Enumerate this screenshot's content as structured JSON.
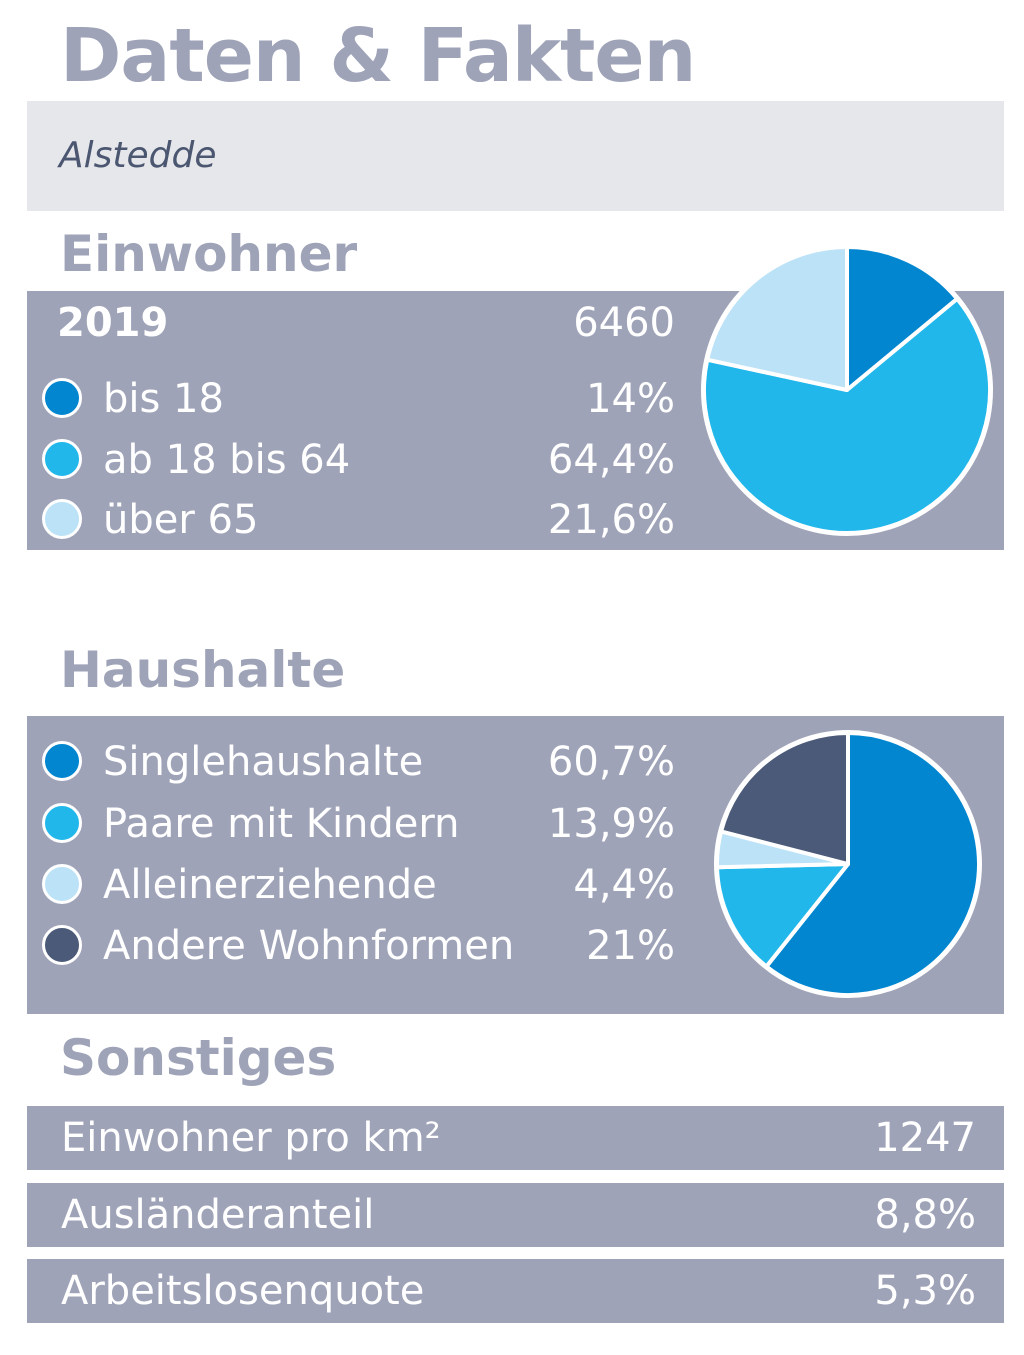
{
  "title": "Daten & Fakten",
  "location": "Alstedde",
  "colors": {
    "panel": "#9fa3b8",
    "heading": "#9ea3b8",
    "blue_dark": "#0286cf",
    "blue_mid": "#22b7ea",
    "blue_light": "#bbe2f7",
    "slate": "#4b5a78"
  },
  "einwohner": {
    "heading": "Einwohner",
    "year": "2019",
    "total": "6460",
    "rows": [
      {
        "label": "bis 18",
        "value": "14%",
        "color": "#0286cf"
      },
      {
        "label": "ab 18 bis 64",
        "value": "64,4%",
        "color": "#22b7ea"
      },
      {
        "label": "über 65",
        "value": "21,6%",
        "color": "#bbe2f7"
      }
    ]
  },
  "haushalte": {
    "heading": "Haushalte",
    "rows": [
      {
        "label": "Singlehaushalte",
        "value": "60,7%",
        "color": "#0286cf"
      },
      {
        "label": "Paare mit Kindern",
        "value": "13,9%",
        "color": "#22b7ea"
      },
      {
        "label": "Alleinerziehende",
        "value": "4,4%",
        "color": "#bbe2f7"
      },
      {
        "label": "Andere Wohnformen",
        "value": "21%",
        "color": "#4b5a78"
      }
    ]
  },
  "sonstiges": {
    "heading": "Sonstiges",
    "rows": [
      {
        "label": "Einwohner pro km²",
        "value": "1247"
      },
      {
        "label": "Ausländeranteil",
        "value": "8,8%"
      },
      {
        "label": "Arbeitslosenquote",
        "value": "5,3%"
      }
    ]
  },
  "chart_data": [
    {
      "type": "pie",
      "categories": [
        "bis 18",
        "ab 18 bis 64",
        "über 65"
      ],
      "values": [
        14,
        64.4,
        21.6
      ],
      "colors": [
        "#0286cf",
        "#22b7ea",
        "#bbe2f7"
      ]
    },
    {
      "type": "pie",
      "categories": [
        "Singlehaushalte",
        "Paare mit Kindern",
        "Alleinerziehende",
        "Andere Wohnformen"
      ],
      "values": [
        60.7,
        13.9,
        4.4,
        21
      ],
      "colors": [
        "#0286cf",
        "#22b7ea",
        "#bbe2f7",
        "#4b5a78"
      ]
    }
  ]
}
